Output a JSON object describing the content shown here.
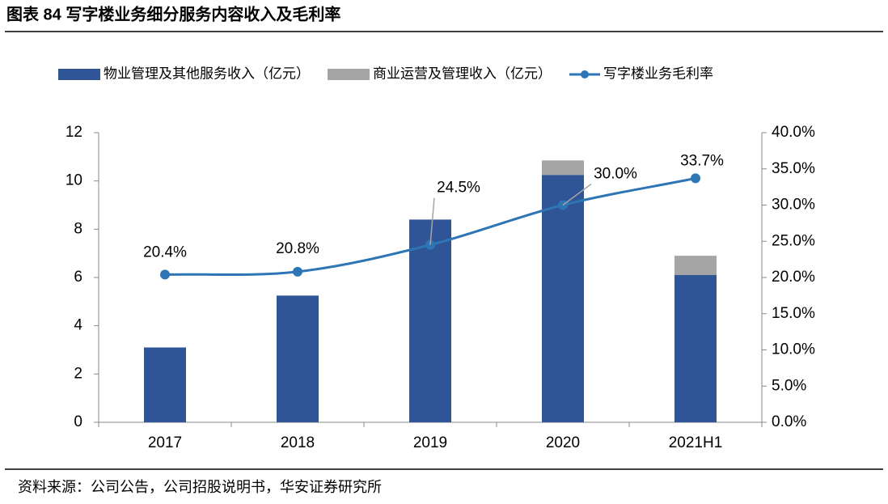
{
  "chart_data": {
    "type": "bar",
    "title": "图表 84 写字楼业务细分服务内容收入及毛利率",
    "source": "资料来源：公司公告，公司招股说明书，华安证券研究所",
    "categories": [
      "2017",
      "2018",
      "2019",
      "2020",
      "2021H1"
    ],
    "series": [
      {
        "name": "物业管理及其他服务收入（亿元）",
        "color": "#2f5597",
        "type": "bar",
        "values": [
          3.1,
          5.25,
          8.4,
          10.25,
          6.1
        ]
      },
      {
        "name": "商业运营及管理收入（亿元）",
        "color": "#a5a5a5",
        "type": "bar",
        "values": [
          0,
          0,
          0,
          0.6,
          0.8
        ]
      },
      {
        "name": "写字楼业务毛利率",
        "color": "#2e75b6",
        "type": "line",
        "axis": "y2",
        "values": [
          20.4,
          20.8,
          24.5,
          30.0,
          33.7
        ],
        "value_labels": [
          "20.4%",
          "20.8%",
          "24.5%",
          "30.0%",
          "33.7%"
        ]
      }
    ],
    "ylim": [
      0,
      12
    ],
    "yticks": [
      0,
      2,
      4,
      6,
      8,
      10,
      12
    ],
    "y2lim": [
      0,
      40
    ],
    "y2ticks": [
      {
        "value": 0,
        "label": "0.0%"
      },
      {
        "value": 5,
        "label": "5.0%"
      },
      {
        "value": 10,
        "label": "10.0%"
      },
      {
        "value": 15,
        "label": "15.0%"
      },
      {
        "value": 20,
        "label": "20.0%"
      },
      {
        "value": 25,
        "label": "25.0%"
      },
      {
        "value": 30,
        "label": "30.0%"
      },
      {
        "value": 35,
        "label": "35.0%"
      },
      {
        "value": 40,
        "label": "40.0%"
      }
    ],
    "grid": false,
    "legend": "top"
  }
}
